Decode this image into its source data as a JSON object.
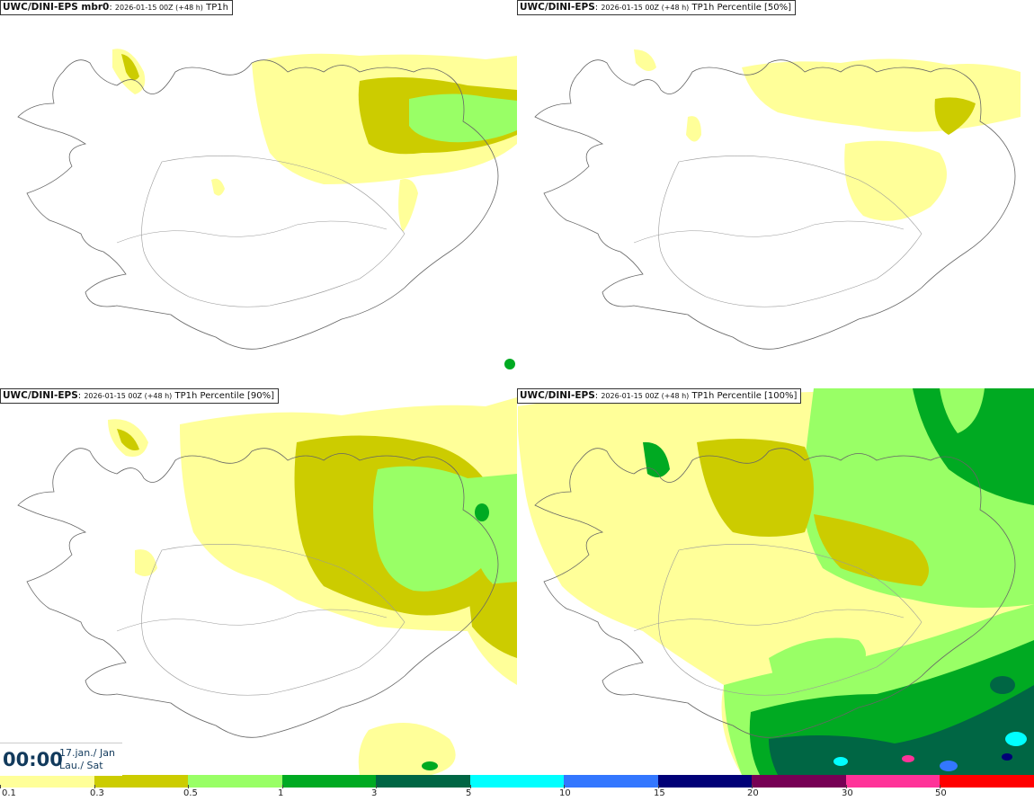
{
  "panels": [
    {
      "title_bold": "UWC/DINI-EPS mbr0",
      "title_meta": "2026-01-15 00Z (+48 h)",
      "title_field": "TP1h"
    },
    {
      "title_bold": "UWC/DINI-EPS",
      "title_meta": "2026-01-15 00Z (+48 h)",
      "title_field": "TP1h Percentile [50%]"
    },
    {
      "title_bold": "UWC/DINI-EPS",
      "title_meta": "2026-01-15 00Z (+48 h)",
      "title_field": "TP1h Percentile [90%]"
    },
    {
      "title_bold": "UWC/DINI-EPS",
      "title_meta": "2026-01-15 00Z (+48 h)",
      "title_field": "TP1h Percentile [100%]"
    }
  ],
  "valid_time": {
    "clock": "00:00",
    "date_line1": "17.jan./ Jan",
    "date_line2": "Lau./ Sat"
  },
  "legend": {
    "colors": [
      "#ffff99",
      "#cccc00",
      "#99ff66",
      "#00aa22",
      "#006644",
      "#00ffff",
      "#3377ff",
      "#000077",
      "#770055",
      "#ff3399",
      "#ff0000"
    ],
    "labels": [
      "0.1",
      "0.3",
      "0.5",
      "1",
      "3",
      "5",
      "10",
      "15",
      "20",
      "30",
      "50"
    ]
  }
}
